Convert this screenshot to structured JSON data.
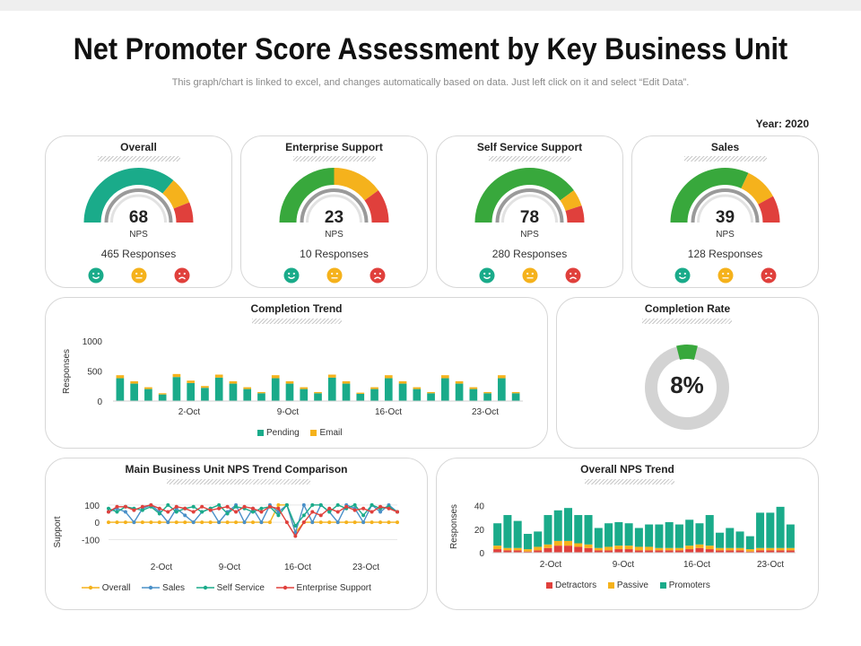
{
  "header": {
    "title": "Net Promoter Score Assessment by Key Business Unit",
    "subtitle": "This graph/chart is linked to excel, and changes automatically based on data. Just left click on it and select “Edit Data”.",
    "year": "Year: 2020"
  },
  "colors": {
    "teal": "#1aab8a",
    "green": "#38a83c",
    "yellow": "#f5b21c",
    "red": "#e0403c",
    "grey": "#d0d0d0"
  },
  "gauges": [
    {
      "title": "Overall",
      "nps": "68",
      "nps_label": "NPS",
      "responses": "465 Responses",
      "segments": [
        {
          "color": "#1aab8a",
          "frac": 0.72
        },
        {
          "color": "#f5b21c",
          "frac": 0.16
        },
        {
          "color": "#e0403c",
          "frac": 0.12
        }
      ]
    },
    {
      "title": "Enterprise Support",
      "nps": "23",
      "nps_label": "NPS",
      "responses": "10 Responses",
      "segments": [
        {
          "color": "#38a83c",
          "frac": 0.5
        },
        {
          "color": "#f5b21c",
          "frac": 0.3
        },
        {
          "color": "#e0403c",
          "frac": 0.2
        }
      ]
    },
    {
      "title": "Self Service Support",
      "nps": "78",
      "nps_label": "NPS",
      "responses": "280 Responses",
      "segments": [
        {
          "color": "#38a83c",
          "frac": 0.8
        },
        {
          "color": "#f5b21c",
          "frac": 0.1
        },
        {
          "color": "#e0403c",
          "frac": 0.1
        }
      ]
    },
    {
      "title": "Sales",
      "nps": "39",
      "nps_label": "NPS",
      "responses": "128 Responses",
      "segments": [
        {
          "color": "#38a83c",
          "frac": 0.64
        },
        {
          "color": "#f5b21c",
          "frac": 0.2
        },
        {
          "color": "#e0403c",
          "frac": 0.16
        }
      ]
    }
  ],
  "face_icons": [
    "happy-face-icon",
    "neutral-face-icon",
    "sad-face-icon"
  ],
  "completion_rate": {
    "title": "Completion Rate",
    "value": 8,
    "label": "8%"
  },
  "chart_data": [
    {
      "type": "bar",
      "title": "Completion Trend",
      "ylabel": "Responses",
      "ylim": [
        0,
        1000
      ],
      "yticks": [
        "1000",
        "500",
        "0"
      ],
      "x_tick_labels": [
        "2-Oct",
        "9-Oct",
        "16-Oct",
        "23-Oct"
      ],
      "series": [
        {
          "name": "Pending",
          "color": "#1aab8a",
          "values": [
            380,
            290,
            200,
            110,
            400,
            300,
            220,
            390,
            290,
            200,
            130,
            380,
            290,
            200,
            130,
            390,
            290,
            120,
            200,
            380,
            290,
            200,
            130,
            380,
            290,
            200,
            130,
            380,
            130
          ]
        },
        {
          "name": "Email",
          "color": "#f5b21c",
          "values": [
            50,
            40,
            30,
            20,
            50,
            40,
            30,
            50,
            40,
            30,
            20,
            50,
            40,
            30,
            20,
            50,
            40,
            20,
            30,
            50,
            40,
            30,
            20,
            50,
            40,
            30,
            20,
            50,
            20
          ]
        }
      ]
    },
    {
      "type": "line",
      "title": "Main Business Unit NPS Trend Comparison",
      "ylabel": "Support",
      "ylim": [
        -150,
        120
      ],
      "yticks": [
        "100",
        "0",
        "-100"
      ],
      "x_tick_labels": [
        "2-Oct",
        "9-Oct",
        "16-Oct",
        "23-Oct"
      ],
      "series": [
        {
          "name": "Overall",
          "color": "#f5b21c",
          "values": [
            0,
            0,
            0,
            0,
            0,
            0,
            0,
            0,
            0,
            0,
            0,
            0,
            0,
            0,
            0,
            0,
            0,
            0,
            0,
            0,
            100,
            100,
            -60,
            0,
            0,
            0,
            0,
            0,
            0,
            0,
            0,
            0,
            0,
            0,
            0
          ]
        },
        {
          "name": "Sales",
          "color": "#4a90c8",
          "values": [
            60,
            80,
            60,
            0,
            80,
            100,
            60,
            0,
            80,
            40,
            0,
            60,
            80,
            0,
            60,
            100,
            0,
            80,
            0,
            100,
            60,
            100,
            -60,
            100,
            0,
            100,
            60,
            0,
            100,
            80,
            0,
            100,
            60,
            100,
            60
          ]
        },
        {
          "name": "Self Service",
          "color": "#1aab8a",
          "values": [
            80,
            60,
            90,
            80,
            70,
            90,
            50,
            100,
            60,
            80,
            90,
            60,
            80,
            100,
            50,
            90,
            80,
            60,
            80,
            90,
            40,
            100,
            -20,
            40,
            100,
            100,
            60,
            100,
            80,
            100,
            40,
            100,
            80,
            90,
            60
          ]
        },
        {
          "name": "Enterprise Support",
          "color": "#e0403c",
          "values": [
            60,
            90,
            90,
            70,
            90,
            100,
            80,
            60,
            90,
            80,
            60,
            90,
            70,
            80,
            90,
            60,
            90,
            80,
            60,
            90,
            80,
            0,
            -80,
            0,
            60,
            40,
            80,
            60,
            90,
            70,
            80,
            60,
            90,
            80,
            60
          ]
        }
      ]
    },
    {
      "type": "bar",
      "title": "Overall NPS Trend",
      "ylabel": "Responses",
      "ylim": [
        0,
        45
      ],
      "yticks": [
        "40",
        "20",
        "0"
      ],
      "x_tick_labels": [
        "2-Oct",
        "9-Oct",
        "16-Oct",
        "23-Oct"
      ],
      "series": [
        {
          "name": "Detractors",
          "color": "#e0403c",
          "values": [
            3,
            2,
            2,
            1,
            2,
            4,
            6,
            6,
            5,
            4,
            2,
            2,
            3,
            3,
            2,
            2,
            2,
            2,
            2,
            3,
            4,
            3,
            2,
            2,
            2,
            1,
            2,
            2,
            2,
            2
          ]
        },
        {
          "name": "Passive",
          "color": "#f5b21c",
          "values": [
            3,
            2,
            2,
            2,
            3,
            3,
            4,
            4,
            3,
            3,
            2,
            3,
            3,
            3,
            3,
            3,
            2,
            2,
            2,
            3,
            3,
            3,
            2,
            2,
            2,
            2,
            2,
            2,
            2,
            2
          ]
        },
        {
          "name": "Promoters",
          "color": "#1aab8a",
          "values": [
            19,
            28,
            23,
            13,
            13,
            25,
            26,
            28,
            24,
            25,
            17,
            20,
            20,
            19,
            16,
            19,
            20,
            22,
            20,
            22,
            18,
            26,
            13,
            17,
            14,
            11,
            30,
            30,
            35,
            20
          ]
        }
      ]
    }
  ]
}
